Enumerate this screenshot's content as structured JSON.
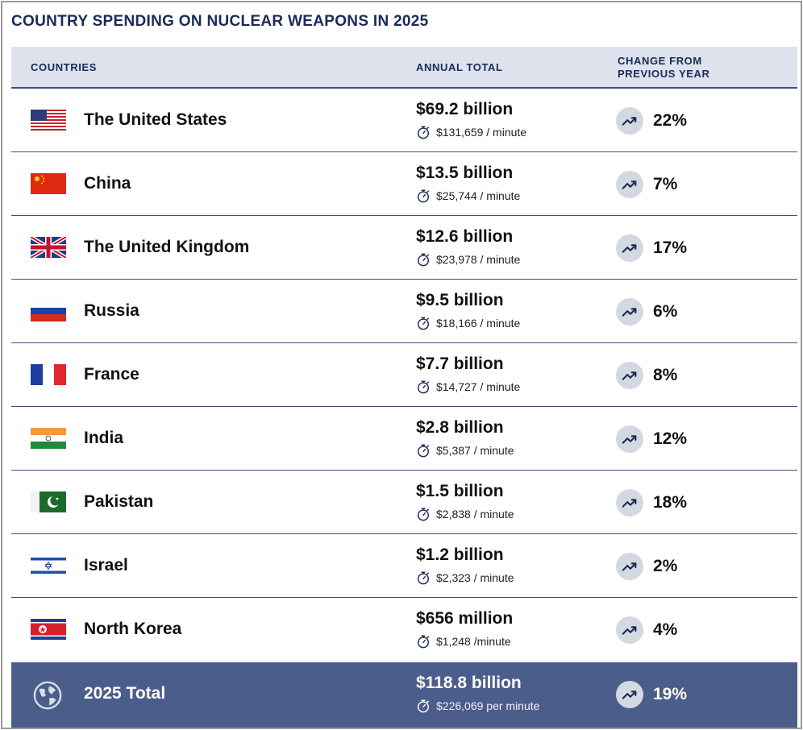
{
  "page": {
    "title": "COUNTRY SPENDING ON NUCLEAR WEAPONS IN 2025"
  },
  "table": {
    "headers": {
      "countries": "COUNTRIES",
      "annual_total": "ANNUAL TOTAL",
      "change_line1": "CHANGE FROM",
      "change_line2": "PREVIOUS YEAR"
    },
    "total": {
      "label": "2025 Total",
      "amount": "$118.8 billion",
      "per_minute": "$226,069 per minute",
      "change": "19%",
      "icon": "globe-icon"
    }
  },
  "chart_data": {
    "type": "table",
    "title": "COUNTRY SPENDING ON NUCLEAR WEAPONS IN 2025",
    "columns": [
      "COUNTRIES",
      "ANNUAL TOTAL",
      "CHANGE FROM PREVIOUS YEAR"
    ],
    "rows": [
      {
        "country": "The United States",
        "amount": "$69.2 billion",
        "per_minute": "$131,659 / minute",
        "change": "22%",
        "flag": "us-flag"
      },
      {
        "country": "China",
        "amount": "$13.5 billion",
        "per_minute": "$25,744 / minute",
        "change": "7%",
        "flag": "china-flag"
      },
      {
        "country": "The United Kingdom",
        "amount": "$12.6 billion",
        "per_minute": "$23,978 / minute",
        "change": "17%",
        "flag": "uk-flag"
      },
      {
        "country": "Russia",
        "amount": "$9.5 billion",
        "per_minute": "$18,166 / minute",
        "change": "6%",
        "flag": "russia-flag"
      },
      {
        "country": "France",
        "amount": "$7.7 billion",
        "per_minute": "$14,727 / minute",
        "change": "8%",
        "flag": "france-flag"
      },
      {
        "country": "India",
        "amount": "$2.8 billion",
        "per_minute": "$5,387 / minute",
        "change": "12%",
        "flag": "india-flag"
      },
      {
        "country": "Pakistan",
        "amount": "$1.5 billion",
        "per_minute": "$2,838 / minute",
        "change": "18%",
        "flag": "pakistan-flag"
      },
      {
        "country": "Israel",
        "amount": "$1.2 billion",
        "per_minute": "$2,323 / minute",
        "change": "2%",
        "flag": "israel-flag"
      },
      {
        "country": "North Korea",
        "amount": "$656 million",
        "per_minute": "$1,248 /minute",
        "change": "4%",
        "flag": "north-korea-flag"
      }
    ]
  },
  "colors": {
    "title": "#1b2a58",
    "header_bg": "#dde2ec",
    "rule": "#3f5077",
    "total_bg": "#4b5d8a",
    "trend_bg": "#d4d8e0",
    "trend_icon": "#1b2a58"
  }
}
